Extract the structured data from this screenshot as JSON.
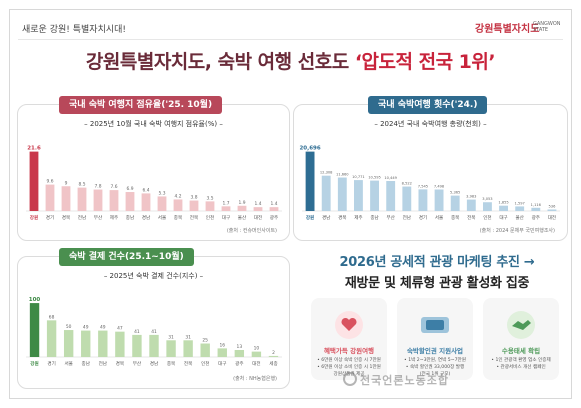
{
  "header": {
    "slogan": "새로운 강원! 특별자치시대!",
    "logo_text": "강원특별자치도",
    "logo_en": "GANGWON STATE"
  },
  "headline": {
    "main": "강원특별자치도, 숙박 여행 선호도 ",
    "highlight": "‘압도적 전국 1위’"
  },
  "panel_share": {
    "tag": "국내 숙박 여행지 점유율('25. 10월)",
    "subtitle": "– 2025년 10월 국내 숙박 여행지 점유율(%) –",
    "source": "(출처 : 컨슈머인사이트)"
  },
  "panel_trips": {
    "tag": "국내 숙박여행 횟수('24.)",
    "subtitle": "– 2024년 국내 숙박여행 총량(천회) –",
    "source": "(출처 : 2024 문체부 국민여행조사)"
  },
  "panel_payments": {
    "tag": "숙박 결제 건수(25.1~10월)",
    "subtitle": "– 2025년 숙박 결제 건수(지수) –",
    "source": "(출처 : NH농협은행)"
  },
  "promo": {
    "line1_a": "2026년 ",
    "line1_b": "공세적 관광 마케팅 추진 →",
    "line2": "재방문 및 체류형 관광 활성화 집중"
  },
  "cards": [
    {
      "title": "혜택가득 강원여행",
      "lines": [
        "• 6만원 이상 숙박 인증 시 7만원",
        "• 6만원 이상 소비 인증 시 1만원",
        "강원상품권 제공"
      ],
      "color": "#d9525f"
    },
    {
      "title": "숙박할인권 지원사업",
      "lines": [
        "• 1박 2~3만원, 연박 5~7만원",
        "• 숙박 할인권 33,000장 발행",
        "(전국 1위 규모)"
      ],
      "color": "#3d7ea6"
    },
    {
      "title": "수용태세 확립",
      "lines": [
        "• 1인 관광객 환영 업소 인증제",
        "• 관광서비스 개선 캠페인"
      ],
      "color": "#4f9a5a"
    }
  ],
  "watermark": "전국언론노동조합",
  "chart_data": [
    {
      "type": "bar",
      "title": "2025년 10월 국내 숙박 여행지 점유율(%)",
      "categories": [
        "강원",
        "경기",
        "경북",
        "전남",
        "부산",
        "제주",
        "충남",
        "경남",
        "서울",
        "충북",
        "전북",
        "인천",
        "대구",
        "울산",
        "대전",
        "광주"
      ],
      "values": [
        21.6,
        9.6,
        9.0,
        8.5,
        7.8,
        7.6,
        6.9,
        6.4,
        5.3,
        4.2,
        3.8,
        3.5,
        1.7,
        1.9,
        1.4,
        1.4
      ],
      "ylim": [
        0,
        24
      ],
      "colors": {
        "highlight": "#c9384b",
        "normal": "#f0c4c7"
      }
    },
    {
      "type": "bar",
      "title": "2024년 국내 숙박여행 총량(천회)",
      "categories": [
        "강원",
        "경남",
        "경북",
        "제주",
        "충남",
        "부산",
        "전남",
        "경기",
        "서울",
        "충북",
        "전북",
        "인천",
        "대구",
        "울산",
        "광주",
        "대전"
      ],
      "values": [
        20696,
        12308,
        11660,
        10771,
        10595,
        10449,
        8522,
        7545,
        7498,
        5365,
        3983,
        3053,
        1855,
        1597,
        1116,
        536
      ],
      "ylim": [
        0,
        23000
      ],
      "colors": {
        "highlight": "#2e6d93",
        "normal": "#b6d2e4"
      }
    },
    {
      "type": "bar",
      "title": "2025년 숙박 결제 건수(지수)",
      "categories": [
        "강원",
        "경기",
        "서울",
        "충남",
        "전남",
        "경북",
        "부산",
        "경남",
        "충북",
        "전북",
        "인천",
        "대구",
        "광주",
        "대전",
        "세종"
      ],
      "values": [
        100,
        68,
        50,
        49,
        49,
        47,
        41,
        41,
        31,
        31,
        25,
        16,
        13,
        10,
        2
      ],
      "ylim": [
        0,
        115
      ],
      "colors": {
        "highlight": "#3e8a46",
        "normal": "#bfdcae"
      }
    }
  ]
}
